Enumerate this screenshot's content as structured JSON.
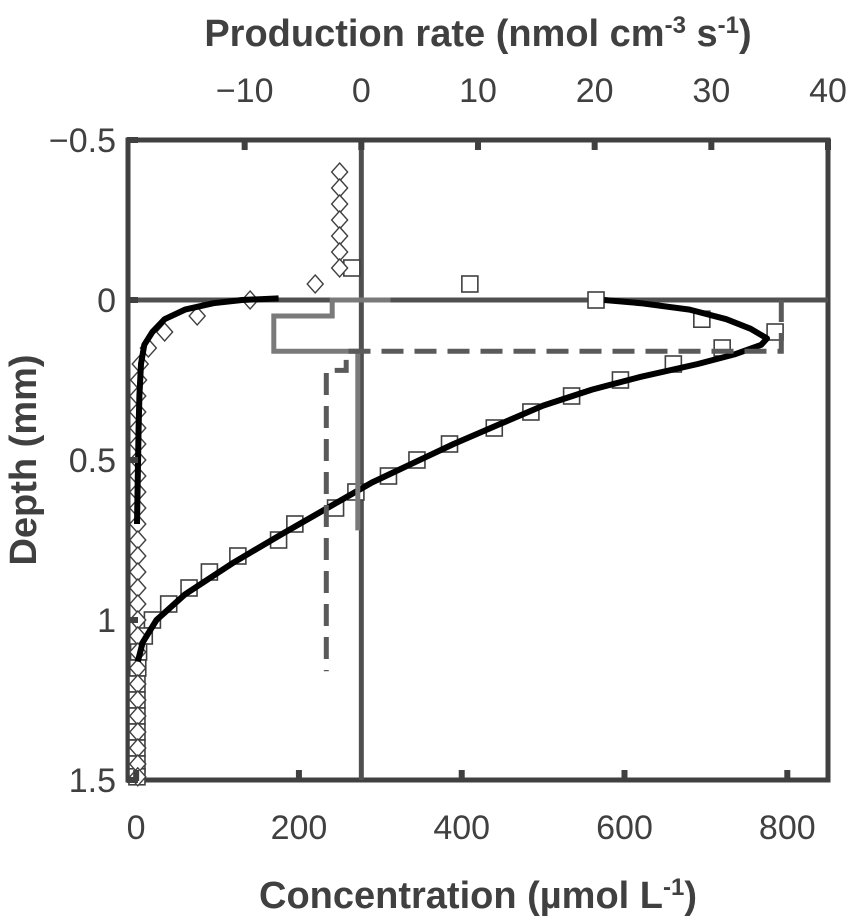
{
  "chart_data": {
    "type": "scatter",
    "top_axis": {
      "label_main": "Production rate (nmol cm",
      "label_sup1": "-3",
      "label_mid": " s",
      "label_sup2": "-1",
      "label_end": ")",
      "range": [
        -20,
        40
      ],
      "ticks": [
        -10,
        0,
        10,
        20,
        30,
        40
      ],
      "tick_labels": [
        "−10",
        "0",
        "10",
        "20",
        "30",
        "40"
      ]
    },
    "bottom_axis": {
      "label_main": "Concentration (µmol L",
      "label_sup": "-1",
      "label_end": ")",
      "range": [
        -10,
        850
      ],
      "ticks": [
        0,
        200,
        400,
        600,
        800
      ],
      "tick_labels": [
        "0",
        "200",
        "400",
        "600",
        "800"
      ]
    },
    "y_axis": {
      "label": "Depth (mm)",
      "range": [
        -0.5,
        1.5
      ],
      "inverted": true,
      "ticks": [
        -0.5,
        0,
        0.5,
        1,
        1.5
      ],
      "tick_labels": [
        "−0.5",
        "0",
        "0.5",
        "1",
        "1.5"
      ]
    },
    "reference_lines": {
      "surface_depth": 0,
      "zero_production": 0
    },
    "series": [
      {
        "marker": "square",
        "axis": "concentration",
        "points": [
          [
            265,
            -0.1
          ],
          [
            410,
            -0.05
          ],
          [
            565,
            0
          ],
          [
            695,
            0.06
          ],
          [
            785,
            0.1
          ],
          [
            720,
            0.15
          ],
          [
            660,
            0.2
          ],
          [
            595,
            0.25
          ],
          [
            535,
            0.3
          ],
          [
            485,
            0.35
          ],
          [
            440,
            0.4
          ],
          [
            385,
            0.45
          ],
          [
            345,
            0.5
          ],
          [
            310,
            0.55
          ],
          [
            270,
            0.6
          ],
          [
            245,
            0.65
          ],
          [
            195,
            0.7
          ],
          [
            175,
            0.75
          ],
          [
            125,
            0.8
          ],
          [
            90,
            0.85
          ],
          [
            65,
            0.9
          ],
          [
            40,
            0.95
          ],
          [
            20,
            1.0
          ],
          [
            10,
            1.05
          ],
          [
            3,
            1.1
          ],
          [
            2,
            1.15
          ],
          [
            1,
            1.2
          ],
          [
            1,
            1.25
          ],
          [
            1,
            1.3
          ],
          [
            1,
            1.35
          ],
          [
            1,
            1.4
          ],
          [
            1,
            1.45
          ],
          [
            1,
            1.49
          ]
        ]
      },
      {
        "marker": "diamond",
        "axis": "concentration",
        "points": [
          [
            250,
            -0.4
          ],
          [
            250,
            -0.35
          ],
          [
            250,
            -0.3
          ],
          [
            250,
            -0.25
          ],
          [
            250,
            -0.2
          ],
          [
            250,
            -0.15
          ],
          [
            250,
            -0.1
          ],
          [
            220,
            -0.05
          ],
          [
            140,
            0
          ],
          [
            75,
            0.05
          ],
          [
            35,
            0.1
          ],
          [
            15,
            0.15
          ],
          [
            5,
            0.2
          ],
          [
            3,
            0.25
          ],
          [
            2,
            0.3
          ],
          [
            2,
            0.35
          ],
          [
            2,
            0.4
          ],
          [
            2,
            0.45
          ],
          [
            2,
            0.5
          ],
          [
            2,
            0.55
          ],
          [
            2,
            0.6
          ],
          [
            2,
            0.65
          ],
          [
            2,
            0.7
          ],
          [
            2,
            0.75
          ],
          [
            2,
            0.8
          ],
          [
            2,
            0.85
          ],
          [
            2,
            0.9
          ],
          [
            2,
            0.95
          ],
          [
            2,
            1.0
          ],
          [
            2,
            1.05
          ],
          [
            2,
            1.1
          ],
          [
            2,
            1.15
          ],
          [
            2,
            1.2
          ],
          [
            2,
            1.25
          ],
          [
            2,
            1.3
          ],
          [
            2,
            1.35
          ],
          [
            2,
            1.4
          ],
          [
            2,
            1.45
          ],
          [
            2,
            1.49
          ]
        ]
      },
      {
        "style": "line",
        "axis": "concentration",
        "points": [
          [
            575,
            0
          ],
          [
            620,
            0.01
          ],
          [
            680,
            0.03
          ],
          [
            725,
            0.06
          ],
          [
            755,
            0.09
          ],
          [
            775,
            0.12
          ],
          [
            768,
            0.14
          ],
          [
            735,
            0.17
          ],
          [
            690,
            0.2
          ],
          [
            620,
            0.24
          ],
          [
            560,
            0.28
          ],
          [
            500,
            0.33
          ],
          [
            445,
            0.39
          ],
          [
            390,
            0.45
          ],
          [
            340,
            0.51
          ],
          [
            290,
            0.57
          ],
          [
            235,
            0.65
          ],
          [
            180,
            0.73
          ],
          [
            120,
            0.82
          ],
          [
            60,
            0.92
          ],
          [
            25,
            1.0
          ],
          [
            8,
            1.07
          ],
          [
            2,
            1.13
          ]
        ]
      },
      {
        "style": "line",
        "axis": "concentration",
        "points": [
          [
            175,
            -0.005
          ],
          [
            130,
            0
          ],
          [
            95,
            0.01
          ],
          [
            60,
            0.03
          ],
          [
            35,
            0.06
          ],
          [
            20,
            0.1
          ],
          [
            10,
            0.14
          ],
          [
            6,
            0.2
          ],
          [
            4,
            0.3
          ],
          [
            3,
            0.4
          ],
          [
            2,
            0.55
          ],
          [
            1,
            0.7
          ]
        ]
      },
      {
        "style": "step",
        "axis": "production",
        "points": [
          [
            2.5,
            0
          ],
          [
            -2.5,
            0
          ],
          [
            -2.5,
            0.05
          ],
          [
            -7.5,
            0.05
          ],
          [
            -7.5,
            0.16
          ],
          [
            -0.3,
            0.16
          ],
          [
            -0.3,
            0.72
          ]
        ]
      },
      {
        "style": "dashed-step",
        "axis": "production",
        "points": [
          [
            36,
            0
          ],
          [
            36,
            0.08
          ],
          [
            36,
            0.16
          ],
          [
            -1.3,
            0.16
          ],
          [
            -1.3,
            0.22
          ],
          [
            -3,
            0.22
          ],
          [
            -3,
            1.16
          ]
        ]
      }
    ]
  }
}
